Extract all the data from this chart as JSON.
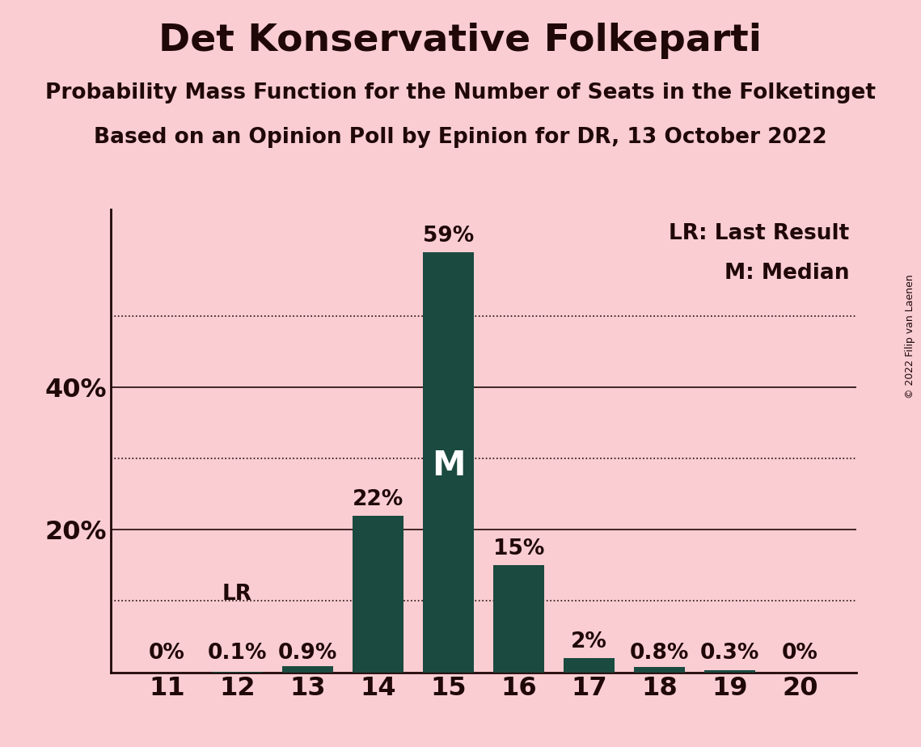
{
  "title": "Det Konservative Folkeparti",
  "subtitle1": "Probability Mass Function for the Number of Seats in the Folketinget",
  "subtitle2": "Based on an Opinion Poll by Epinion for DR, 13 October 2022",
  "copyright": "© 2022 Filip van Laenen",
  "seats": [
    11,
    12,
    13,
    14,
    15,
    16,
    17,
    18,
    19,
    20
  ],
  "values": [
    0.0,
    0.1,
    0.9,
    22.0,
    59.0,
    15.0,
    2.0,
    0.8,
    0.3,
    0.0
  ],
  "bar_color": "#1a4a40",
  "background_color": "#f9cdd2",
  "text_color": "#200808",
  "median_seat": 15,
  "lr_seat": 12,
  "legend_lr": "LR: Last Result",
  "legend_m": "M: Median",
  "ytick_labels": [
    "20%",
    "40%"
  ],
  "ytick_values": [
    20,
    40
  ],
  "dotted_yticks": [
    10,
    30,
    50
  ],
  "ylim": [
    0,
    65
  ],
  "bar_labels": [
    "0%",
    "0.1%",
    "0.9%",
    "22%",
    "59%",
    "15%",
    "2%",
    "0.8%",
    "0.3%",
    "0%"
  ],
  "bar_label_threshold": 1.5
}
